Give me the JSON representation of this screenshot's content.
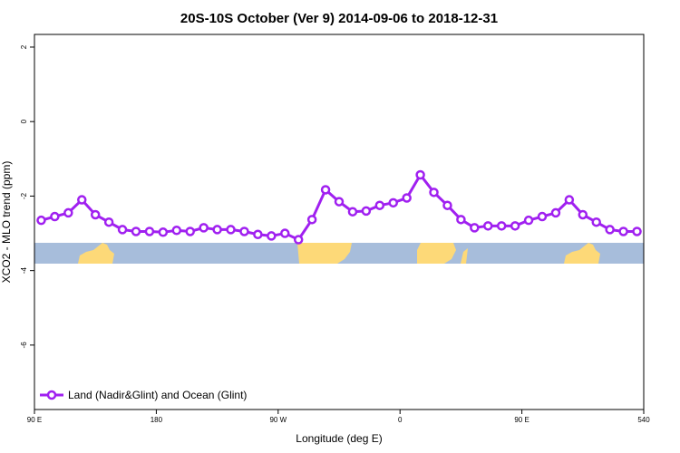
{
  "chart_data": {
    "type": "line",
    "title": "20S-10S October (Ver 9)   2014-09-06 to 2018-12-31",
    "xlabel": "Longitude (deg E)",
    "ylabel": "XCO2 - MLO trend (ppm)",
    "x": [
      95,
      105,
      115,
      125,
      135,
      145,
      155,
      165,
      175,
      185,
      195,
      205,
      215,
      225,
      235,
      245,
      255,
      265,
      275,
      285,
      295,
      305,
      315,
      325,
      335,
      345,
      355,
      365,
      375,
      385,
      395,
      405,
      415,
      425,
      435,
      445,
      455,
      465,
      475,
      485,
      495,
      505,
      515,
      525,
      535
    ],
    "series": [
      {
        "name": "Land (Nadir&Glint) and Ocean (Glint)",
        "color": "#a020f0",
        "values": [
          -2.65,
          -2.55,
          -2.45,
          -2.1,
          -2.5,
          -2.7,
          -2.9,
          -2.95,
          -2.95,
          -2.97,
          -2.92,
          -2.95,
          -2.85,
          -2.9,
          -2.9,
          -2.95,
          -3.03,
          -3.07,
          -3.0,
          -3.17,
          -2.63,
          -1.83,
          -2.15,
          -2.42,
          -2.4,
          -2.25,
          -2.18,
          -2.05,
          -1.43,
          -1.9,
          -2.25,
          -2.63,
          -2.85,
          -2.8,
          -2.8,
          -2.8,
          -2.65,
          -2.55,
          -2.45,
          -2.1,
          -2.5,
          -2.7,
          -2.9,
          -2.95,
          -2.95
        ]
      }
    ],
    "xlim": [
      90,
      540
    ],
    "xticks": [
      {
        "value": 90,
        "label": "90 E"
      },
      180,
      {
        "value": 270,
        "label": "90 W"
      },
      {
        "value": 360,
        "label": "0"
      },
      {
        "value": 450,
        "label": "90 E"
      },
      540
    ],
    "ylim": [
      -7.73,
      2.34
    ],
    "yticks": [
      2,
      0,
      -2,
      -4,
      -6
    ],
    "legend": "bottom-left"
  }
}
